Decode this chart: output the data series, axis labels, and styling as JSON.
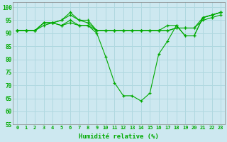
{
  "xlabel": "Humidité relative (%)",
  "background_color": "#cde8f0",
  "grid_color": "#b0d8e0",
  "line_color": "#00aa00",
  "xlim": [
    -0.5,
    23.5
  ],
  "ylim": [
    55,
    102
  ],
  "yticks": [
    55,
    60,
    65,
    70,
    75,
    80,
    85,
    90,
    95,
    100
  ],
  "xtick_labels": [
    "0",
    "1",
    "2",
    "3",
    "4",
    "5",
    "6",
    "7",
    "8",
    "9",
    "10",
    "11",
    "12",
    "13",
    "14",
    "15",
    "16",
    "17",
    "18",
    "19",
    "20",
    "21",
    "22",
    "23"
  ],
  "lines": [
    [
      91,
      91,
      91,
      94,
      94,
      93,
      95,
      93,
      93,
      90,
      81,
      71,
      66,
      66,
      64,
      67,
      82,
      87,
      93,
      89,
      89,
      96,
      97,
      98
    ],
    [
      91,
      91,
      91,
      94,
      94,
      95,
      97,
      95,
      95,
      91,
      91,
      91,
      91,
      91,
      91,
      91,
      91,
      93,
      93,
      89,
      89,
      96,
      97,
      98
    ],
    [
      91,
      91,
      91,
      93,
      94,
      93,
      94,
      93,
      93,
      91,
      91,
      91,
      91,
      91,
      91,
      91,
      91,
      91,
      92,
      92,
      92,
      95,
      96,
      97
    ],
    [
      91,
      91,
      91,
      94,
      94,
      95,
      98,
      95,
      94,
      91,
      91,
      91,
      91,
      91,
      91,
      91,
      91,
      91,
      92,
      92,
      92,
      96,
      97,
      98
    ]
  ],
  "figsize": [
    3.2,
    2.0
  ],
  "dpi": 100
}
